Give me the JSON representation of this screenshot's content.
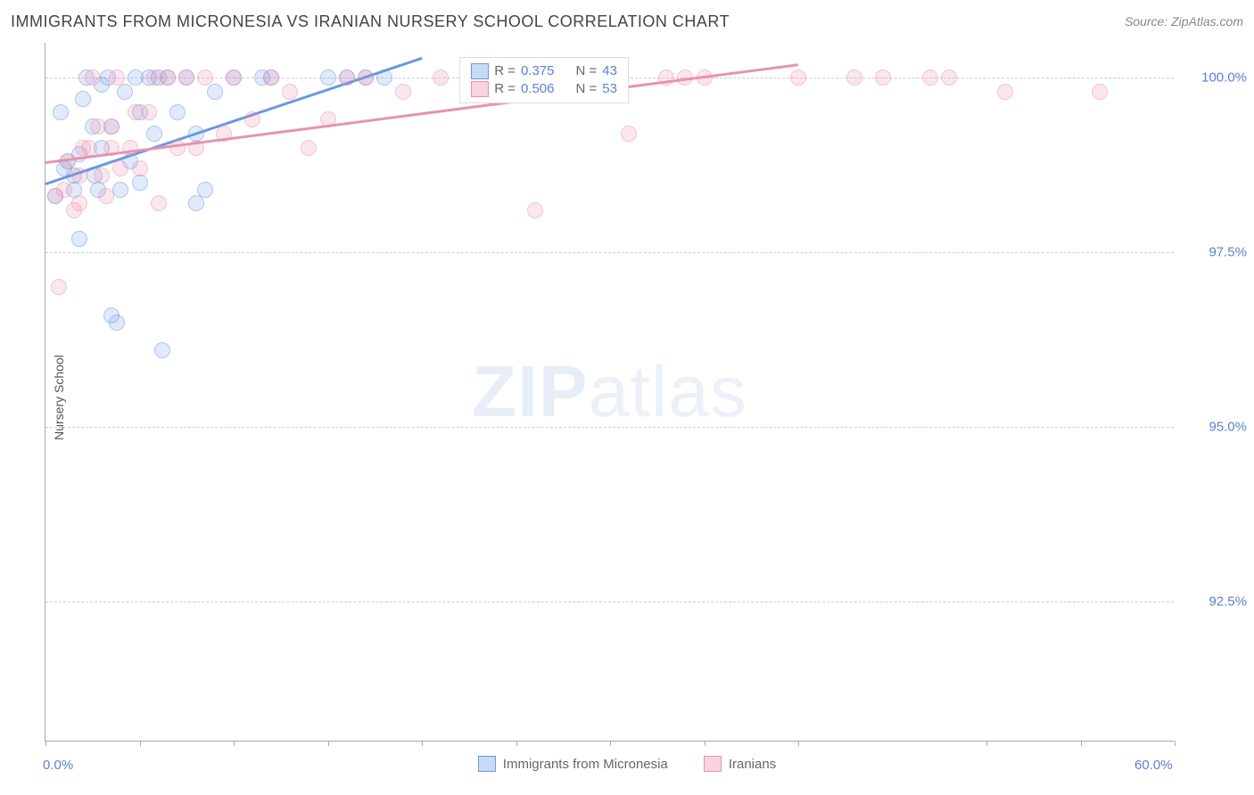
{
  "title": "IMMIGRANTS FROM MICRONESIA VS IRANIAN NURSERY SCHOOL CORRELATION CHART",
  "source_label": "Source: ZipAtlas.com",
  "y_axis_label": "Nursery School",
  "watermark_zip": "ZIP",
  "watermark_atlas": "atlas",
  "chart": {
    "type": "scatter",
    "xlim": [
      0,
      60
    ],
    "ylim": [
      90.5,
      100.5
    ],
    "x_tick_start_label": "0.0%",
    "x_tick_end_label": "60.0%",
    "x_tick_positions": [
      0,
      5,
      10,
      15,
      20,
      25,
      30,
      35,
      40,
      50,
      55,
      60
    ],
    "y_ticks": [
      {
        "value": 92.5,
        "label": "92.5%"
      },
      {
        "value": 95.0,
        "label": "95.0%"
      },
      {
        "value": 97.5,
        "label": "97.5%"
      },
      {
        "value": 100.0,
        "label": "100.0%"
      }
    ],
    "grid_color": "#cccccc",
    "axis_color": "#aaaaaa",
    "background_color": "#ffffff",
    "series": [
      {
        "name": "Immigrants from Micronesia",
        "color_fill": "rgba(100,150,230,0.35)",
        "color_stroke": "#6a98e0",
        "points": [
          [
            0.5,
            98.3
          ],
          [
            0.8,
            99.5
          ],
          [
            1.0,
            98.7
          ],
          [
            1.2,
            98.8
          ],
          [
            1.5,
            98.6
          ],
          [
            1.5,
            98.4
          ],
          [
            1.8,
            98.9
          ],
          [
            1.8,
            97.7
          ],
          [
            2.0,
            99.7
          ],
          [
            2.2,
            100.0
          ],
          [
            2.5,
            99.3
          ],
          [
            2.6,
            98.6
          ],
          [
            2.8,
            98.4
          ],
          [
            3.0,
            99.0
          ],
          [
            3.0,
            99.9
          ],
          [
            3.3,
            100.0
          ],
          [
            3.5,
            99.3
          ],
          [
            3.5,
            96.6
          ],
          [
            3.8,
            96.5
          ],
          [
            4.0,
            98.4
          ],
          [
            4.2,
            99.8
          ],
          [
            4.5,
            98.8
          ],
          [
            4.8,
            100.0
          ],
          [
            5.0,
            99.5
          ],
          [
            5.0,
            98.5
          ],
          [
            5.5,
            100.0
          ],
          [
            5.8,
            99.2
          ],
          [
            6.0,
            100.0
          ],
          [
            6.2,
            96.1
          ],
          [
            6.5,
            100.0
          ],
          [
            7.0,
            99.5
          ],
          [
            7.5,
            100.0
          ],
          [
            8.0,
            99.2
          ],
          [
            8.0,
            98.2
          ],
          [
            8.5,
            98.4
          ],
          [
            9.0,
            99.8
          ],
          [
            10.0,
            100.0
          ],
          [
            11.5,
            100.0
          ],
          [
            12.0,
            100.0
          ],
          [
            15.0,
            100.0
          ],
          [
            16.0,
            100.0
          ],
          [
            17.0,
            100.0
          ],
          [
            18.0,
            100.0
          ]
        ],
        "trend": {
          "x1": 0,
          "y1": 98.5,
          "x2": 20,
          "y2": 100.3
        },
        "stats": {
          "R_label": "R =",
          "R_value": "0.375",
          "N_label": "N =",
          "N_value": "43"
        }
      },
      {
        "name": "Iranians",
        "color_fill": "rgba(240,130,160,0.35)",
        "color_stroke": "#e893ac",
        "points": [
          [
            0.5,
            98.3
          ],
          [
            0.7,
            97.0
          ],
          [
            1.0,
            98.4
          ],
          [
            1.2,
            98.8
          ],
          [
            1.5,
            98.1
          ],
          [
            1.8,
            98.6
          ],
          [
            1.8,
            98.2
          ],
          [
            2.0,
            99.0
          ],
          [
            2.3,
            99.0
          ],
          [
            2.5,
            100.0
          ],
          [
            2.8,
            99.3
          ],
          [
            3.0,
            98.6
          ],
          [
            3.2,
            98.3
          ],
          [
            3.5,
            99.3
          ],
          [
            3.5,
            99.0
          ],
          [
            3.8,
            100.0
          ],
          [
            4.0,
            98.7
          ],
          [
            4.5,
            99.0
          ],
          [
            4.8,
            99.5
          ],
          [
            5.0,
            98.7
          ],
          [
            5.5,
            99.5
          ],
          [
            5.8,
            100.0
          ],
          [
            6.0,
            98.2
          ],
          [
            6.5,
            100.0
          ],
          [
            7.0,
            99.0
          ],
          [
            7.5,
            100.0
          ],
          [
            8.0,
            99.0
          ],
          [
            8.5,
            100.0
          ],
          [
            9.5,
            99.2
          ],
          [
            10.0,
            100.0
          ],
          [
            11.0,
            99.4
          ],
          [
            12.0,
            100.0
          ],
          [
            13.0,
            99.8
          ],
          [
            14.0,
            99.0
          ],
          [
            15.0,
            99.4
          ],
          [
            16.0,
            100.0
          ],
          [
            17.0,
            100.0
          ],
          [
            19.0,
            99.8
          ],
          [
            21.0,
            100.0
          ],
          [
            24.0,
            100.0
          ],
          [
            26.0,
            98.1
          ],
          [
            29.0,
            100.0
          ],
          [
            31.0,
            99.2
          ],
          [
            33.0,
            100.0
          ],
          [
            34.0,
            100.0
          ],
          [
            35.0,
            100.0
          ],
          [
            40.0,
            100.0
          ],
          [
            43.0,
            100.0
          ],
          [
            44.5,
            100.0
          ],
          [
            47.0,
            100.0
          ],
          [
            48.0,
            100.0
          ],
          [
            51.0,
            99.8
          ],
          [
            56.0,
            99.8
          ]
        ],
        "trend": {
          "x1": 0,
          "y1": 98.8,
          "x2": 40,
          "y2": 100.2
        },
        "stats": {
          "R_label": "R =",
          "R_value": "0.506",
          "N_label": "N =",
          "N_value": "53"
        }
      }
    ]
  },
  "bottom_legend": [
    {
      "label": "Immigrants from Micronesia",
      "fill": "rgba(100,150,230,0.35)",
      "stroke": "#6a98e0"
    },
    {
      "label": "Iranians",
      "fill": "rgba(240,130,160,0.35)",
      "stroke": "#e893ac"
    }
  ]
}
